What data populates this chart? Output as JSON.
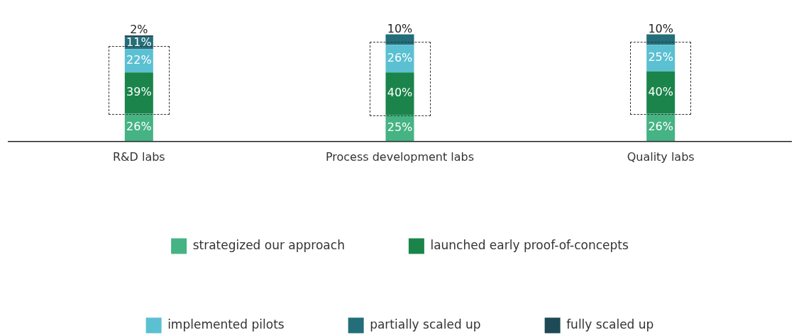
{
  "chart_data": {
    "type": "bar",
    "stacked": true,
    "legend": "bottom",
    "grid": false,
    "categories": [
      "R&D labs",
      "Process development labs",
      "Quality labs"
    ],
    "series": [
      {
        "name": "strategized our approach",
        "color": "#45b383",
        "values": [
          26,
          25,
          26
        ],
        "value_labels": [
          "26%",
          "25%",
          "26%"
        ]
      },
      {
        "name": "launched early proof-of-concepts",
        "color": "#1b844a",
        "values": [
          39,
          40,
          40
        ],
        "value_labels": [
          "39%",
          "40%",
          "40%"
        ]
      },
      {
        "name": "implemented pilots",
        "color": "#5bc0d2",
        "values": [
          22,
          26,
          25
        ],
        "value_labels": [
          "22%",
          "26%",
          "25%"
        ]
      },
      {
        "name": "partially scaled up",
        "color": "#236e7a",
        "values": [
          11,
          10,
          10
        ],
        "value_labels": [
          "11%",
          "10%",
          "10%"
        ]
      },
      {
        "name": "fully scaled up",
        "color": "#1d4a55",
        "values": [
          2,
          null,
          null
        ],
        "value_labels": [
          "2%",
          null,
          null
        ]
      }
    ]
  }
}
